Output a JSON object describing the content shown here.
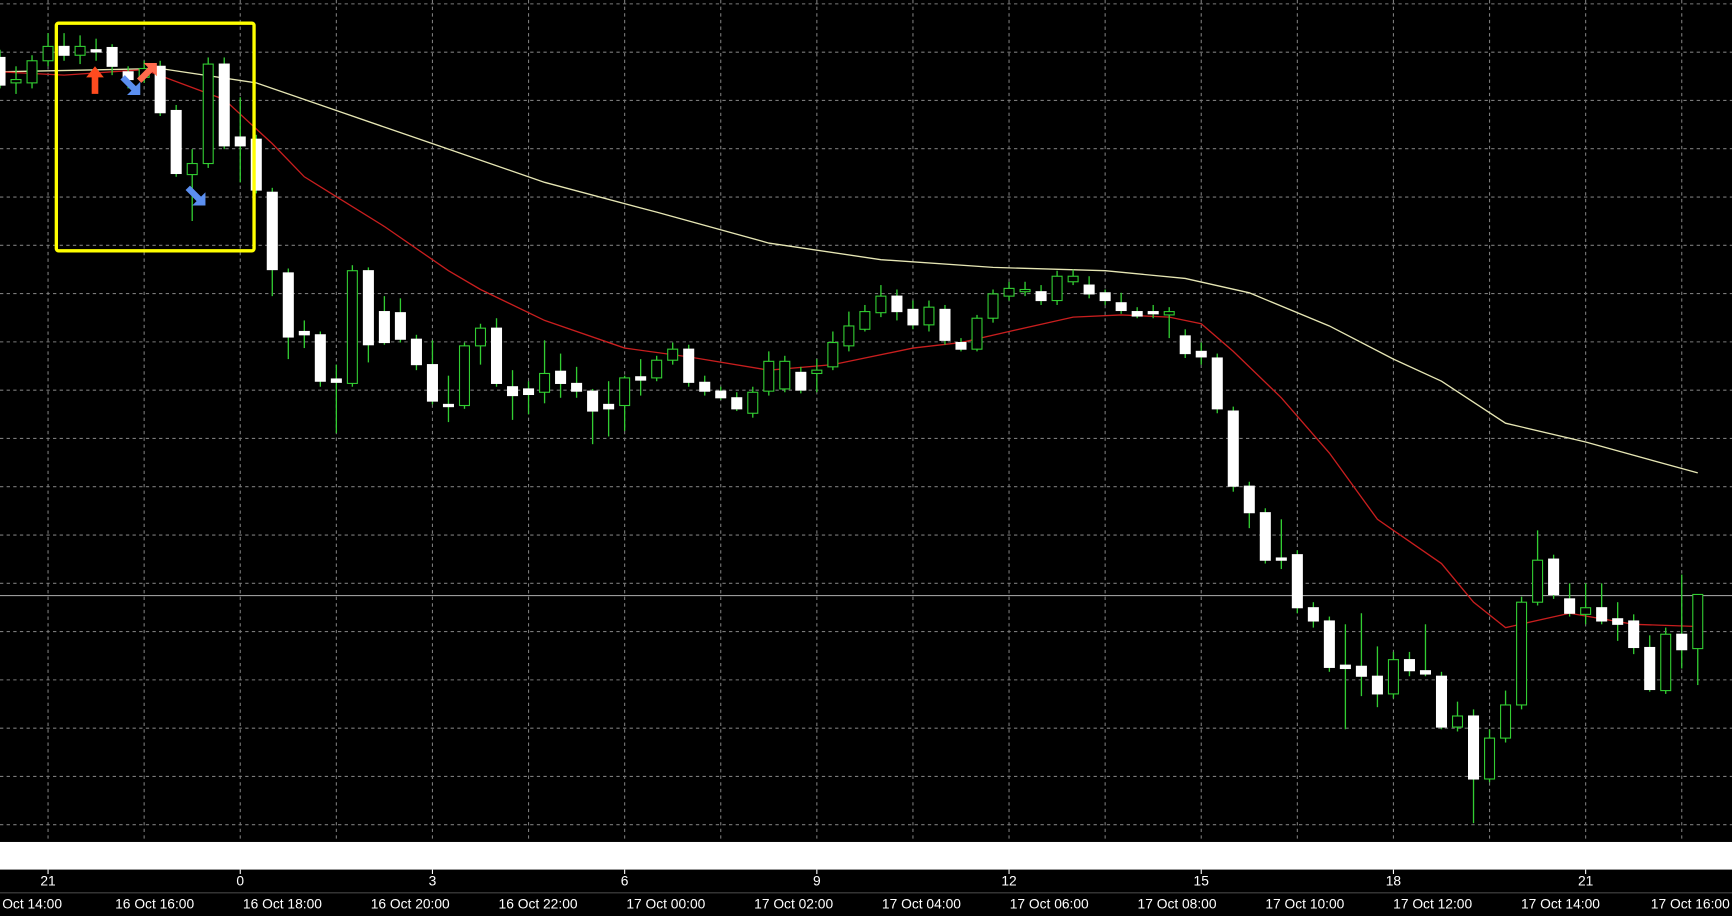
{
  "chart_data": {
    "type": "candlestick",
    "bull_color": "#000000",
    "bear_color": "#ffffff",
    "wick_color": "#32cd32",
    "candles": [
      [
        708,
        715,
        680,
        683
      ],
      [
        685,
        700,
        675,
        688
      ],
      [
        685,
        710,
        680,
        705
      ],
      [
        705,
        730,
        700,
        718
      ],
      [
        718,
        730,
        705,
        710
      ],
      [
        710,
        728,
        702,
        718
      ],
      [
        715,
        725,
        705,
        713
      ],
      [
        717,
        720,
        692,
        700
      ],
      [
        695,
        700,
        680,
        688
      ],
      [
        690,
        705,
        685,
        698
      ],
      [
        700,
        705,
        655,
        658
      ],
      [
        660,
        665,
        600,
        603
      ],
      [
        602,
        625,
        560,
        612
      ],
      [
        612,
        708,
        608,
        702
      ],
      [
        702,
        708,
        625,
        628
      ],
      [
        636,
        672,
        595,
        628
      ],
      [
        634,
        638,
        585,
        588
      ],
      [
        586,
        590,
        492,
        516
      ],
      [
        513,
        517,
        435,
        455
      ],
      [
        460,
        470,
        445,
        457
      ],
      [
        457,
        460,
        410,
        415
      ],
      [
        417,
        430,
        368,
        414
      ],
      [
        413,
        520,
        410,
        515
      ],
      [
        515,
        518,
        432,
        448
      ],
      [
        478,
        492,
        448,
        450
      ],
      [
        477,
        490,
        450,
        453
      ],
      [
        453,
        457,
        425,
        430
      ],
      [
        430,
        452,
        394,
        397
      ],
      [
        394,
        420,
        378,
        392
      ],
      [
        393,
        450,
        390,
        447
      ],
      [
        447,
        467,
        430,
        463
      ],
      [
        463,
        472,
        410,
        413
      ],
      [
        410,
        425,
        380,
        402
      ],
      [
        408,
        415,
        385,
        403
      ],
      [
        405,
        452,
        395,
        422
      ],
      [
        424,
        440,
        400,
        413
      ],
      [
        413,
        428,
        400,
        406
      ],
      [
        406,
        408,
        358,
        388
      ],
      [
        394,
        415,
        365,
        390
      ],
      [
        393,
        420,
        370,
        418
      ],
      [
        419,
        435,
        402,
        416
      ],
      [
        418,
        438,
        415,
        434
      ],
      [
        434,
        450,
        430,
        444
      ],
      [
        444,
        448,
        410,
        414
      ],
      [
        414,
        420,
        402,
        406
      ],
      [
        406,
        410,
        398,
        400
      ],
      [
        400,
        405,
        388,
        390
      ],
      [
        386,
        410,
        382,
        405
      ],
      [
        406,
        442,
        402,
        433
      ],
      [
        408,
        438,
        405,
        433
      ],
      [
        423,
        428,
        404,
        407
      ],
      [
        422,
        435,
        405,
        425
      ],
      [
        428,
        460,
        425,
        450
      ],
      [
        447,
        478,
        442,
        465
      ],
      [
        462,
        484,
        460,
        478
      ],
      [
        477,
        502,
        473,
        492
      ],
      [
        492,
        498,
        470,
        478
      ],
      [
        480,
        488,
        462,
        466
      ],
      [
        466,
        488,
        460,
        482
      ],
      [
        480,
        484,
        448,
        452
      ],
      [
        450,
        454,
        442,
        444
      ],
      [
        444,
        475,
        442,
        472
      ],
      [
        472,
        498,
        468,
        494
      ],
      [
        492,
        505,
        488,
        499
      ],
      [
        496,
        505,
        492,
        498
      ],
      [
        496,
        502,
        484,
        488
      ],
      [
        488,
        515,
        484,
        510
      ],
      [
        505,
        516,
        502,
        510
      ],
      [
        502,
        510,
        490,
        494
      ],
      [
        495,
        498,
        484,
        488
      ],
      [
        486,
        495,
        476,
        479
      ],
      [
        478,
        482,
        472,
        474
      ],
      [
        478,
        484,
        472,
        476
      ],
      [
        475,
        482,
        454,
        478
      ],
      [
        456,
        462,
        436,
        440
      ],
      [
        442,
        450,
        430,
        437
      ],
      [
        436,
        440,
        386,
        390
      ],
      [
        388,
        392,
        315,
        320
      ],
      [
        320,
        324,
        282,
        296
      ],
      [
        296,
        300,
        250,
        253
      ],
      [
        255,
        290,
        245,
        253
      ],
      [
        258,
        262,
        205,
        210
      ],
      [
        210,
        215,
        192,
        198
      ],
      [
        198,
        202,
        152,
        156
      ],
      [
        158,
        195,
        100,
        155
      ],
      [
        157,
        205,
        130,
        148
      ],
      [
        148,
        175,
        120,
        132
      ],
      [
        132,
        170,
        128,
        163
      ],
      [
        163,
        170,
        148,
        153
      ],
      [
        153,
        195,
        148,
        150
      ],
      [
        148,
        152,
        100,
        102
      ],
      [
        102,
        125,
        98,
        112
      ],
      [
        112,
        118,
        15,
        55
      ],
      [
        55,
        100,
        52,
        92
      ],
      [
        92,
        135,
        88,
        122
      ],
      [
        122,
        220,
        118,
        215
      ],
      [
        215,
        280,
        212,
        253
      ],
      [
        254,
        258,
        218,
        222
      ],
      [
        218,
        232,
        202,
        205
      ],
      [
        204,
        232,
        195,
        210
      ],
      [
        210,
        232,
        195,
        198
      ],
      [
        200,
        215,
        180,
        195
      ],
      [
        198,
        204,
        168,
        174
      ],
      [
        174,
        185,
        134,
        136
      ],
      [
        135,
        192,
        132,
        186
      ],
      [
        186,
        240,
        155,
        172
      ],
      [
        173,
        222,
        140,
        222
      ]
    ],
    "series": [
      {
        "color": "#e6e6b4",
        "x": [
          0,
          10,
          16,
          21,
          28,
          34,
          41,
          48,
          55,
          62,
          69,
          74,
          78,
          83,
          87,
          90,
          94,
          99,
          106
        ],
        "values": [
          695,
          698,
          685,
          660,
          625,
          595,
          568,
          540,
          525,
          518,
          515,
          508,
          495,
          465,
          435,
          415,
          377,
          360,
          332
        ]
      },
      {
        "color": "#c81e1e",
        "x": [
          0,
          4,
          9,
          14,
          17,
          19,
          21,
          24,
          28,
          30,
          34,
          39,
          43,
          48,
          52,
          57,
          60,
          63,
          67,
          70,
          73,
          75,
          77,
          80,
          83,
          86,
          90,
          92,
          94,
          98,
          102,
          106
        ],
        "values": [
          695,
          692,
          697,
          670,
          630,
          600,
          582,
          555,
          515,
          498,
          470,
          445,
          437,
          425,
          430,
          445,
          450,
          460,
          473,
          475,
          473,
          467,
          442,
          400,
          350,
          290,
          250,
          215,
          192,
          205,
          195,
          193
        ]
      }
    ],
    "hour_labels": [
      "21",
      "0",
      "3",
      "6",
      "9",
      "12",
      "15",
      "18",
      "21"
    ],
    "date_labels": [
      "Oct 14:00",
      "16 Oct 16:00",
      "16 Oct 18:00",
      "16 Oct 20:00",
      "16 Oct 22:00",
      "17 Oct 00:00",
      "17 Oct 02:00",
      "17 Oct 04:00",
      "17 Oct 06:00",
      "17 Oct 08:00",
      "17 Oct 10:00",
      "17 Oct 12:00",
      "17 Oct 14:00",
      "17 Oct 16:00"
    ]
  }
}
